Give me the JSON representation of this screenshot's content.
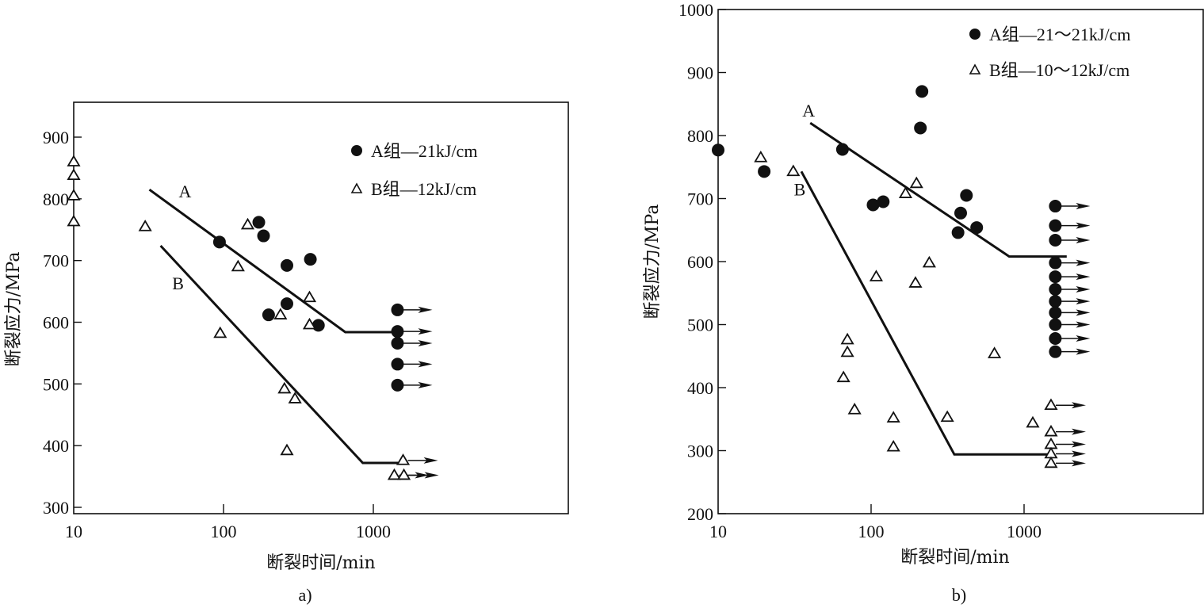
{
  "chart_data": [
    {
      "type": "scatter",
      "panel_label": "a)",
      "xlabel": "断裂时间/min",
      "ylabel": "断裂应力/MPa",
      "xscale": "log",
      "xlim": [
        10,
        3500
      ],
      "ylim": [
        290,
        960
      ],
      "xticks": [
        10,
        100,
        1000
      ],
      "xtick_labels": [
        "10",
        "100",
        "1000"
      ],
      "yticks": [
        300,
        400,
        500,
        600,
        700,
        800,
        900
      ],
      "ytick_labels": [
        "300",
        "400",
        "500",
        "600",
        "700",
        "800",
        "900"
      ],
      "legend_position": "top-right",
      "series": [
        {
          "name": "A组—21kJ/cm",
          "marker": "filled-circle",
          "points": [
            [
              94,
              730
            ],
            [
              172,
              762
            ],
            [
              185,
              740
            ],
            [
              265,
              692
            ],
            [
              200,
              612
            ],
            [
              265,
              630
            ],
            [
              380,
              702
            ],
            [
              430,
              595
            ]
          ],
          "runout_points": [
            [
              1450,
              620
            ],
            [
              1450,
              585
            ],
            [
              1450,
              566
            ],
            [
              1450,
              532
            ],
            [
              1450,
              498
            ]
          ]
        },
        {
          "name": "B组—12kJ/cm",
          "marker": "open-triangle",
          "points": [
            [
              10,
              860
            ],
            [
              10,
              838
            ],
            [
              10,
              805
            ],
            [
              10,
              763
            ],
            [
              30,
              755
            ],
            [
              95,
              582
            ],
            [
              125,
              690
            ],
            [
              145,
              758
            ],
            [
              240,
              612
            ],
            [
              255,
              492
            ],
            [
              265,
              392
            ],
            [
              300,
              476
            ],
            [
              375,
              640
            ],
            [
              375,
              596
            ]
          ],
          "runout_points": [
            [
              1580,
              376
            ],
            [
              1380,
              352
            ],
            [
              1600,
              352
            ]
          ]
        }
      ],
      "fit_lines": [
        {
          "label": "A",
          "points": [
            [
              32,
              815
            ],
            [
              650,
              584
            ],
            [
              1500,
              584
            ]
          ]
        },
        {
          "label": "B",
          "points": [
            [
              38,
              724
            ],
            [
              850,
              372
            ],
            [
              1500,
              372
            ]
          ]
        }
      ]
    },
    {
      "type": "scatter",
      "panel_label": "b)",
      "xlabel": "断裂时间/min",
      "ylabel": "断裂应力/MPa",
      "xscale": "log",
      "xlim": [
        10,
        3000
      ],
      "ylim": [
        200,
        1000
      ],
      "xticks": [
        10,
        100,
        1000
      ],
      "xtick_labels": [
        "10",
        "100",
        "1000"
      ],
      "yticks": [
        200,
        300,
        400,
        500,
        600,
        700,
        800,
        900,
        1000
      ],
      "ytick_labels": [
        "200",
        "300",
        "400",
        "500",
        "600",
        "700",
        "800",
        "900",
        "1000"
      ],
      "legend_position": "top-right",
      "series": [
        {
          "name": "A组—21～21kJ/cm",
          "marker": "filled-circle",
          "points": [
            [
              10,
              777
            ],
            [
              20,
              743
            ],
            [
              65,
              778
            ],
            [
              103,
              690
            ],
            [
              120,
              695
            ],
            [
              215,
              870
            ],
            [
              210,
              812
            ],
            [
              370,
              646
            ],
            [
              385,
              677
            ],
            [
              420,
              705
            ],
            [
              490,
              654
            ]
          ],
          "runout_points": [
            [
              1600,
              688
            ],
            [
              1600,
              657
            ],
            [
              1600,
              634
            ],
            [
              1600,
              598
            ],
            [
              1600,
              576
            ],
            [
              1600,
              556
            ],
            [
              1600,
              537
            ],
            [
              1600,
              519
            ],
            [
              1600,
              500
            ],
            [
              1600,
              478
            ],
            [
              1600,
              457
            ]
          ]
        },
        {
          "name": "B组—10～12kJ/cm",
          "marker": "open-triangle",
          "points": [
            [
              19,
              765
            ],
            [
              31,
              743
            ],
            [
              66,
              416
            ],
            [
              70,
              476
            ],
            [
              70,
              456
            ],
            [
              78,
              365
            ],
            [
              108,
              576
            ],
            [
              140,
              352
            ],
            [
              140,
              306
            ],
            [
              168,
              708
            ],
            [
              195,
              566
            ],
            [
              198,
              724
            ],
            [
              240,
              598
            ],
            [
              315,
              353
            ],
            [
              640,
              454
            ],
            [
              1140,
              344
            ]
          ],
          "runout_points": [
            [
              1500,
              372
            ],
            [
              1500,
              330
            ],
            [
              1500,
              310
            ],
            [
              1500,
              295
            ],
            [
              1500,
              280
            ]
          ]
        }
      ],
      "fit_lines": [
        {
          "label": "A",
          "points": [
            [
              40,
              820
            ],
            [
              800,
              608
            ],
            [
              1900,
              608
            ]
          ]
        },
        {
          "label": "B",
          "points": [
            [
              35,
              743
            ],
            [
              350,
              294
            ],
            [
              1500,
              294
            ]
          ]
        }
      ]
    }
  ]
}
